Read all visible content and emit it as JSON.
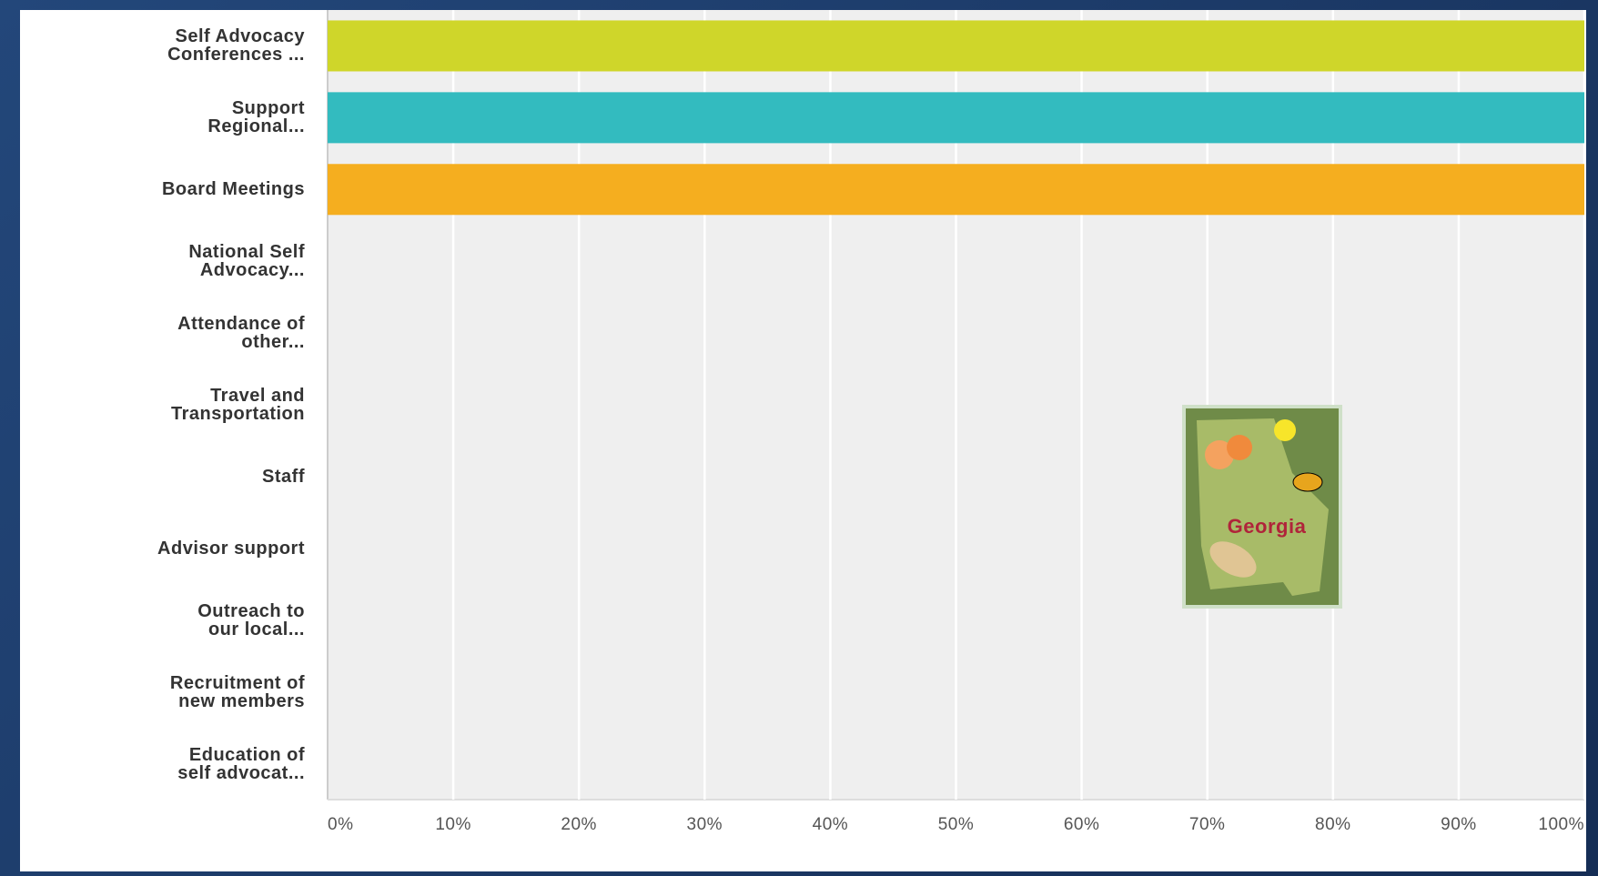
{
  "chart_data": {
    "type": "bar",
    "orientation": "horizontal",
    "categories": [
      "Self Advocacy\nConferences ...",
      "Support\nRegional...",
      "Board Meetings",
      "National Self\nAdvocacy...",
      "Attendance of\nother...",
      "Travel and\nTransportation",
      "Staff",
      "Advisor support",
      "Outreach to\nour local...",
      "Recruitment of\nnew members",
      "Education of\nself advocat..."
    ],
    "values": [
      100,
      100,
      100,
      0,
      0,
      0,
      0,
      0,
      0,
      0,
      0
    ],
    "bar_colors": [
      "#cfd62a",
      "#33bbbf",
      "#f5ae1f"
    ],
    "xlim": [
      0,
      100
    ],
    "xticks": [
      {
        "value": 0,
        "label": "0%"
      },
      {
        "value": 10,
        "label": "10%"
      },
      {
        "value": 20,
        "label": "20%"
      },
      {
        "value": 30,
        "label": "30%"
      },
      {
        "value": 40,
        "label": "40%"
      },
      {
        "value": 50,
        "label": "50%"
      },
      {
        "value": 60,
        "label": "60%"
      },
      {
        "value": 70,
        "label": "70%"
      },
      {
        "value": 80,
        "label": "80%"
      },
      {
        "value": 90,
        "label": "90%"
      },
      {
        "value": 100,
        "label": "100%"
      }
    ],
    "grid": true,
    "inset_image_text": "Georgia"
  }
}
